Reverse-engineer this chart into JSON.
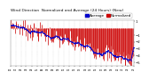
{
  "title": "Wind Direction  Normalized and Average (24 Hours) (New)",
  "title_fontsize": 3.2,
  "background_color": "#ffffff",
  "plot_bg_color": "#ffffff",
  "grid_color": "#bbbbbb",
  "bar_color": "#cc0000",
  "avg_color": "#0000cc",
  "ylim": [
    -5.5,
    1.2
  ],
  "ytick_vals": [
    1,
    -1,
    -2,
    -3,
    -4,
    -5
  ],
  "n_points": 200,
  "seed": 7,
  "legend_norm_label": "Normalized",
  "legend_avg_label": "Average",
  "legend_fontsize": 3.0,
  "bar_linewidth": 0.5,
  "avg_linewidth": 0.6,
  "avg_markersize": 0.8
}
